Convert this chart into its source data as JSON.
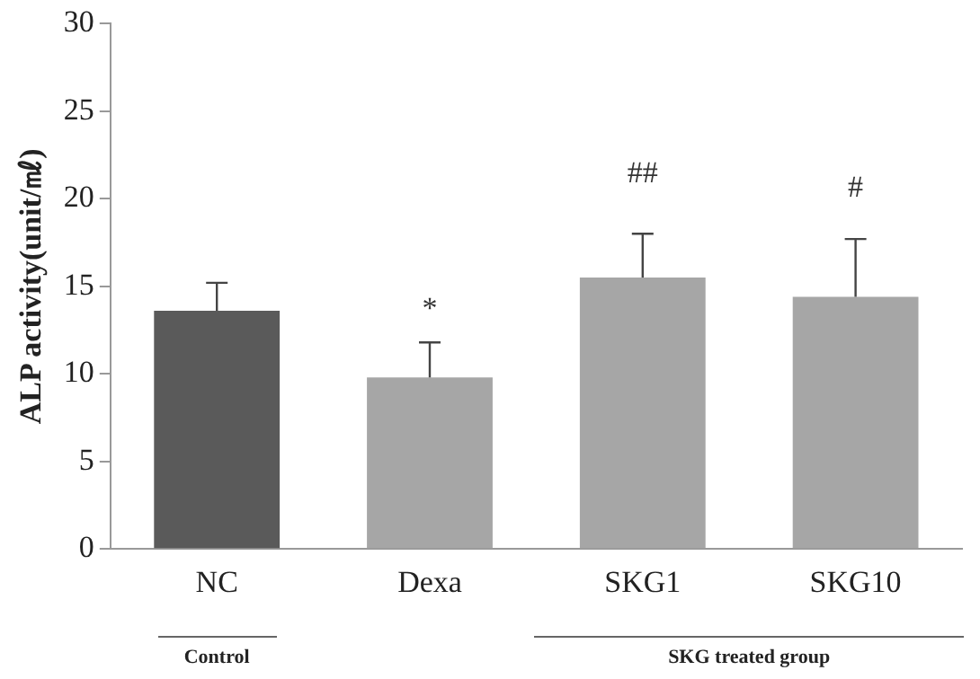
{
  "chart_data": {
    "type": "bar",
    "ylabel": "ALP activity(unit/㎖)",
    "categories": [
      "NC",
      "Dexa",
      "SKG1",
      "SKG10"
    ],
    "values": [
      13.6,
      9.8,
      15.5,
      14.4
    ],
    "colors": [
      "#5a5a5a",
      "#a6a6a6",
      "#a6a6a6",
      "#a6a6a6"
    ],
    "errors": [
      [
        13.6,
        15.2
      ],
      [
        9.8,
        11.8
      ],
      [
        15.5,
        18
      ],
      [
        14.4,
        17.7
      ]
    ],
    "ylim": [
      0,
      30
    ],
    "yticks": [
      0,
      5,
      10,
      15,
      20,
      25,
      30
    ],
    "grid": false,
    "legend": false,
    "annotations": [
      "*",
      "##",
      "#",
      "Control",
      "SKG treated group"
    ]
  }
}
